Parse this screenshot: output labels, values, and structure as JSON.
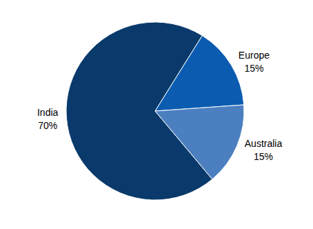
{
  "chart_data": {
    "type": "pie",
    "categories": [
      "India",
      "Europe",
      "Australia"
    ],
    "values": [
      70,
      15,
      15
    ],
    "value_labels": [
      "70%",
      "15%",
      "15%"
    ],
    "colors": [
      "#0a3a6b",
      "#0b5cb0",
      "#4b7fc0"
    ],
    "data_labels": true
  }
}
